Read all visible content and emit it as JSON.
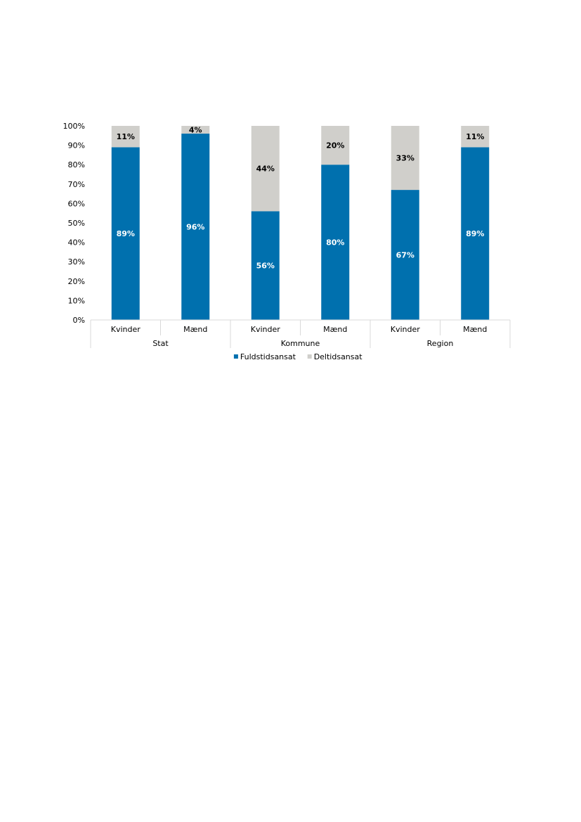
{
  "chart_data": {
    "type": "bar",
    "stacked": true,
    "groups": [
      "Stat",
      "Kommune",
      "Region"
    ],
    "categories": [
      "Kvinder",
      "Mænd",
      "Kvinder",
      "Mænd",
      "Kvinder",
      "Mænd"
    ],
    "category_group": [
      "Stat",
      "Stat",
      "Kommune",
      "Kommune",
      "Region",
      "Region"
    ],
    "series": [
      {
        "name": "Fuldstidsansat",
        "color": "#0070ae",
        "label_color": "#ffffff",
        "values": [
          89,
          96,
          56,
          80,
          67,
          89
        ]
      },
      {
        "name": "Deltidsansat",
        "color": "#d0cfcb",
        "label_color": "#000000",
        "values": [
          11,
          4,
          44,
          20,
          33,
          11
        ]
      }
    ],
    "value_labels": [
      [
        "89%",
        "96%",
        "56%",
        "80%",
        "67%",
        "89%"
      ],
      [
        "11%",
        "4%",
        "44%",
        "20%",
        "33%",
        "11%"
      ]
    ],
    "ylim": [
      0,
      100
    ],
    "yticks": [
      0,
      10,
      20,
      30,
      40,
      50,
      60,
      70,
      80,
      90,
      100
    ],
    "ytick_labels": [
      "0%",
      "10%",
      "20%",
      "30%",
      "40%",
      "50%",
      "60%",
      "70%",
      "80%",
      "90%",
      "100%"
    ],
    "title": "",
    "xlabel": "",
    "ylabel": "",
    "grid": false,
    "legend_position": "bottom"
  }
}
